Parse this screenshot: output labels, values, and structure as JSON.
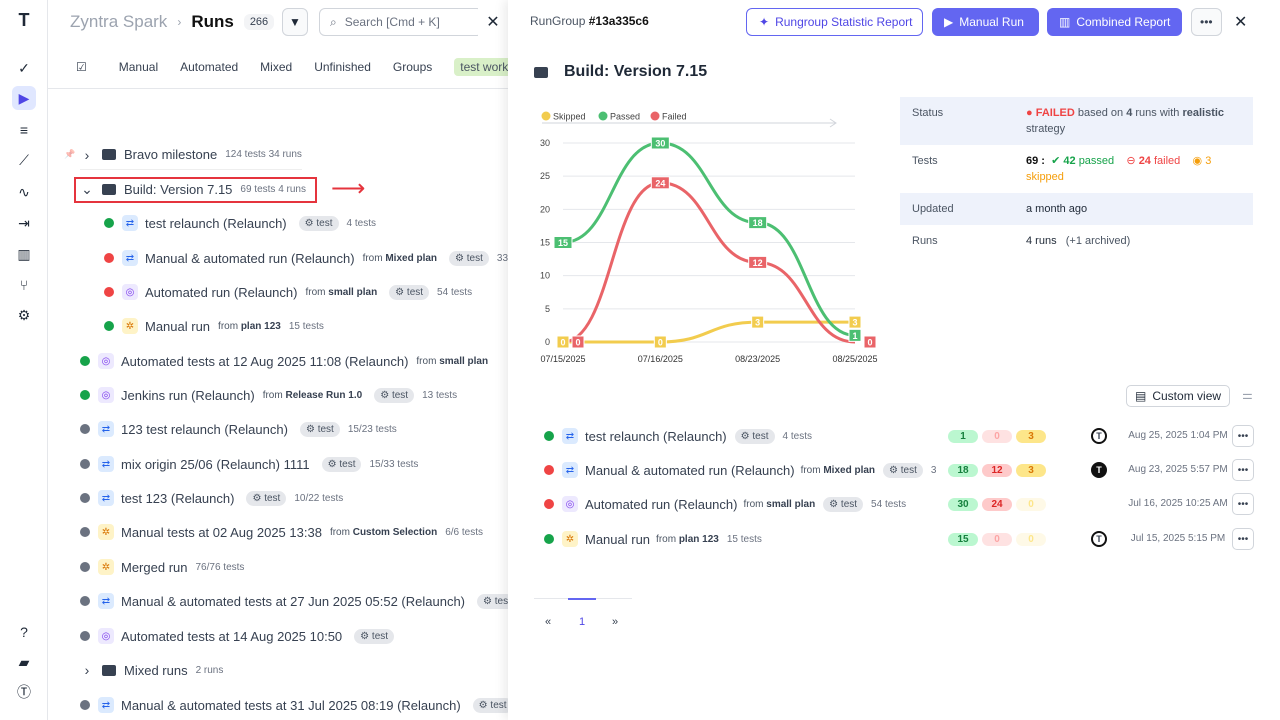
{
  "sidebar": {
    "items": [
      "logo",
      "check",
      "runs",
      "list",
      "chart-line",
      "pulse",
      "import",
      "report",
      "branch",
      "settings",
      "help",
      "folder",
      "avatar"
    ]
  },
  "header": {
    "org": "Zyntra Spark",
    "sep": "›",
    "title": "Runs",
    "count": "266",
    "search_placeholder": "Search [Cmd + K]"
  },
  "tabs": [
    "Manual",
    "Automated",
    "Mixed",
    "Unfinished",
    "Groups"
  ],
  "tag": "test work",
  "list": [
    {
      "kind": "folder",
      "name": "Bravo milestone",
      "meta": "124 tests  34 runs",
      "expanded": false,
      "pinned": true
    },
    {
      "kind": "folder",
      "name": "Build: Version 7.15",
      "meta": "69 tests  4 runs",
      "expanded": true,
      "highlighted": true
    },
    {
      "kind": "run",
      "indent": 1,
      "status": "ok",
      "type": "relaunch",
      "name": "test relaunch (Relaunch)",
      "from": "",
      "chip": "test",
      "meta": "4 tests"
    },
    {
      "kind": "run",
      "indent": 1,
      "status": "fail",
      "type": "relaunch",
      "name": "Manual & automated run (Relaunch)",
      "from": "Mixed plan",
      "chip": "test",
      "meta": "33 t"
    },
    {
      "kind": "run",
      "indent": 1,
      "status": "fail",
      "type": "auto",
      "name": "Automated run (Relaunch)",
      "from": "small plan",
      "chip": "test",
      "meta": "54 tests"
    },
    {
      "kind": "run",
      "indent": 1,
      "status": "ok",
      "type": "manual",
      "name": "Manual run",
      "from": "plan 123",
      "chip": "",
      "meta": "15 tests"
    },
    {
      "kind": "run",
      "indent": 0,
      "status": "ok",
      "type": "auto",
      "name": "Automated tests at 12 Aug 2025 11:08 (Relaunch)",
      "from": "small plan",
      "chip": "",
      "meta": ""
    },
    {
      "kind": "run",
      "indent": 0,
      "status": "ok",
      "type": "auto",
      "name": "Jenkins run (Relaunch)",
      "from": "Release Run 1.0",
      "chip": "test",
      "meta": "13 tests"
    },
    {
      "kind": "run",
      "indent": 0,
      "status": "part",
      "type": "relaunch",
      "name": "123 test relaunch (Relaunch)",
      "from": "",
      "chip": "test",
      "meta": "15/23 tests"
    },
    {
      "kind": "run",
      "indent": 0,
      "status": "part",
      "type": "relaunch",
      "name": "mix origin 25/06 (Relaunch) 1111",
      "from": "",
      "chip": "test",
      "meta": "15/33 tests"
    },
    {
      "kind": "run",
      "indent": 0,
      "status": "part",
      "type": "relaunch",
      "name": "test 123  (Relaunch)",
      "from": "",
      "chip": "test",
      "meta": "10/22 tests"
    },
    {
      "kind": "run",
      "indent": 0,
      "status": "part",
      "type": "manual",
      "name": "Manual tests at 02 Aug 2025 13:38",
      "from": "Custom Selection",
      "chip": "",
      "meta": "6/6 tests"
    },
    {
      "kind": "run",
      "indent": 0,
      "status": "part",
      "type": "manual",
      "name": "Merged run",
      "from": "",
      "chip": "",
      "meta": "76/76 tests"
    },
    {
      "kind": "run",
      "indent": 0,
      "status": "part",
      "type": "relaunch",
      "name": "Manual & automated tests at 27 Jun 2025 05:52 (Relaunch)",
      "from": "",
      "chip": "tes",
      "meta": ""
    },
    {
      "kind": "run",
      "indent": 0,
      "status": "part",
      "type": "auto",
      "name": "Automated tests at 14 Aug 2025 10:50",
      "from": "",
      "chip": "test",
      "meta": ""
    },
    {
      "kind": "folder",
      "name": "Mixed runs",
      "meta": "2 runs",
      "expanded": false
    },
    {
      "kind": "run",
      "indent": 0,
      "status": "part",
      "type": "relaunch",
      "name": "Manual & automated tests at 31 Jul 2025 08:19 (Relaunch)",
      "from": "",
      "chip": "test",
      "meta": ""
    }
  ],
  "from_label": "from",
  "detail": {
    "rungroup_label": "RunGroup",
    "rungroup_id": "#13a335c6",
    "btn_statistic": "Rungroup Statistic Report",
    "btn_manual": "Manual Run",
    "btn_combined": "Combined Report",
    "title": "Build: Version 7.15",
    "info": {
      "status_k": "Status",
      "status_v": "● FAILED",
      "status_rest1": " based on ",
      "status_runs": "4",
      "status_rest2": " runs with ",
      "status_strategy": "realistic",
      "status_rest3": " strategy",
      "tests_k": "Tests",
      "tests_total": "69 :",
      "tests_passed": "42",
      "passed_word": "passed",
      "tests_failed": "24",
      "failed_word": "failed",
      "tests_skipped": "3",
      "skipped_word": "skipped",
      "updated_k": "Updated",
      "updated_v": "a month ago",
      "runs_k": "Runs",
      "runs_v": "4 runs",
      "runs_archived": "(+1 archived)"
    },
    "custom_view": "Custom view",
    "runs": [
      {
        "status": "ok",
        "type": "relaunch",
        "name": "test relaunch (Relaunch)",
        "from": "",
        "chip": "test",
        "meta": "4 tests",
        "passed": "1",
        "failed": "0",
        "skipped": "3",
        "avatar": "light",
        "date": "Aug 25, 2025 1:04 PM"
      },
      {
        "status": "fail",
        "type": "relaunch",
        "name": "Manual & automated run (Relaunch)",
        "from": "Mixed plan",
        "chip": "test",
        "meta": "3",
        "passed": "18",
        "failed": "12",
        "skipped": "3",
        "avatar": "dark",
        "date": "Aug 23, 2025 5:57 PM"
      },
      {
        "status": "fail",
        "type": "auto",
        "name": "Automated run (Relaunch)",
        "from": "small plan",
        "chip": "test",
        "meta": "54 tests",
        "passed": "30",
        "failed": "24",
        "skipped": "0",
        "avatar": "",
        "date": "Jul 16, 2025 10:25 AM"
      },
      {
        "status": "ok",
        "type": "manual",
        "name": "Manual run",
        "from": "plan 123",
        "chip": "",
        "meta": "15 tests",
        "passed": "15",
        "failed": "0",
        "skipped": "0",
        "avatar": "light",
        "date": "Jul 15, 2025 5:15 PM"
      }
    ],
    "pagination": {
      "prev": "«",
      "page": "1",
      "next": "»"
    }
  },
  "chart_data": {
    "type": "line",
    "categories": [
      "07/15/2025",
      "07/16/2025",
      "08/23/2025",
      "08/25/2025"
    ],
    "series": [
      {
        "name": "Skipped",
        "color": "#f2cc4e",
        "values": [
          0,
          0,
          3,
          3
        ]
      },
      {
        "name": "Passed",
        "color": "#4cbf72",
        "values": [
          15,
          30,
          18,
          1
        ]
      },
      {
        "name": "Failed",
        "color": "#e96468",
        "values": [
          0,
          24,
          12,
          0
        ]
      }
    ],
    "ylim": [
      0,
      30
    ],
    "yticks": [
      0,
      5,
      10,
      15,
      20,
      25,
      30
    ],
    "grid": true,
    "legend": "top-left"
  }
}
